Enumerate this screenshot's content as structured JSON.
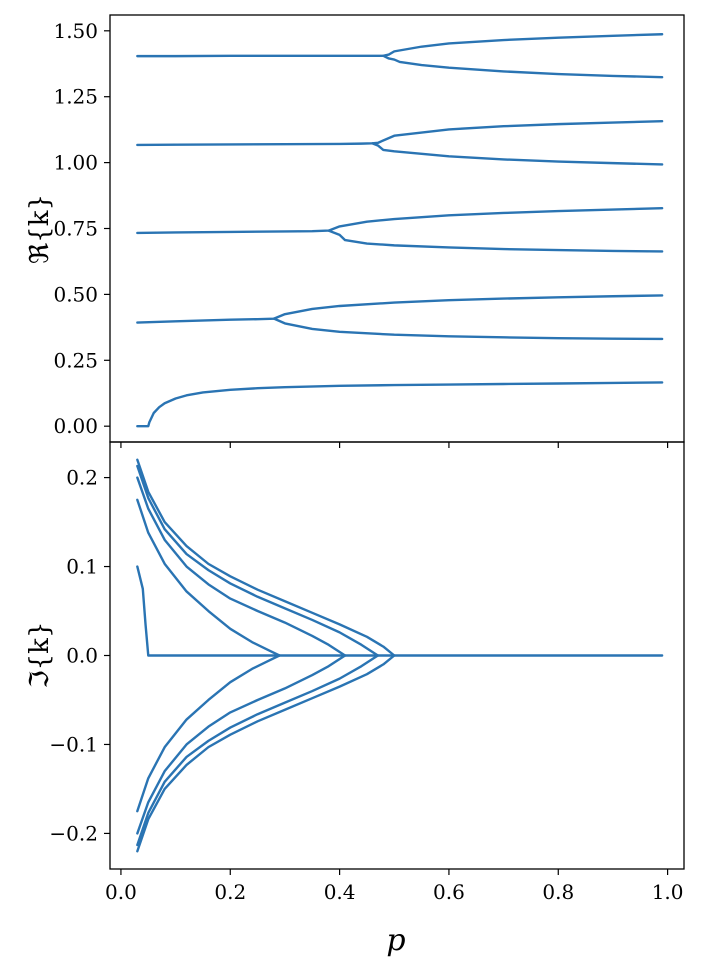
{
  "figure": {
    "line_color": "#2a74b3",
    "xlabel": "p"
  },
  "chart_data": [
    {
      "type": "line",
      "panel": "top",
      "title": "",
      "xlabel": "",
      "ylabel": "ℜ{k}",
      "xlim": [
        -0.02,
        1.03
      ],
      "ylim": [
        -0.06,
        1.56
      ],
      "xticks": [
        0.0,
        0.2,
        0.4,
        0.6,
        0.8,
        1.0
      ],
      "xtick_labels": [],
      "yticks": [
        0.0,
        0.25,
        0.5,
        0.75,
        1.0,
        1.25,
        1.5
      ],
      "ytick_labels": [
        "0.00",
        "0.25",
        "0.50",
        "0.75",
        "1.00",
        "1.25",
        "1.50"
      ],
      "grid": false,
      "series": [
        {
          "x": [
            0.03,
            0.05,
            0.052,
            0.06,
            0.07,
            0.08,
            0.1,
            0.12,
            0.15,
            0.2,
            0.25,
            0.3,
            0.4,
            0.5,
            0.6,
            0.7,
            0.8,
            0.9,
            0.99
          ],
          "y": [
            0.0,
            0.0,
            0.015,
            0.05,
            0.072,
            0.087,
            0.105,
            0.117,
            0.128,
            0.138,
            0.144,
            0.148,
            0.153,
            0.156,
            0.158,
            0.16,
            0.162,
            0.164,
            0.166
          ]
        },
        {
          "x": [
            0.03,
            0.1,
            0.2,
            0.25,
            0.28,
            0.3,
            0.35,
            0.4,
            0.5,
            0.6,
            0.7,
            0.8,
            0.9,
            0.99
          ],
          "y": [
            0.393,
            0.398,
            0.404,
            0.406,
            0.408,
            0.425,
            0.445,
            0.456,
            0.469,
            0.478,
            0.484,
            0.489,
            0.493,
            0.496
          ]
        },
        {
          "x": [
            0.28,
            0.3,
            0.35,
            0.4,
            0.5,
            0.6,
            0.7,
            0.8,
            0.9,
            0.99
          ],
          "y": [
            0.408,
            0.39,
            0.369,
            0.358,
            0.347,
            0.341,
            0.337,
            0.334,
            0.332,
            0.331
          ]
        },
        {
          "x": [
            0.03,
            0.1,
            0.2,
            0.3,
            0.35,
            0.38,
            0.4,
            0.45,
            0.5,
            0.6,
            0.7,
            0.8,
            0.9,
            0.99
          ],
          "y": [
            0.733,
            0.735,
            0.737,
            0.739,
            0.74,
            0.742,
            0.758,
            0.776,
            0.786,
            0.8,
            0.809,
            0.816,
            0.822,
            0.827
          ]
        },
        {
          "x": [
            0.38,
            0.4,
            0.41,
            0.45,
            0.5,
            0.6,
            0.7,
            0.8,
            0.9,
            0.99
          ],
          "y": [
            0.742,
            0.726,
            0.706,
            0.693,
            0.686,
            0.678,
            0.672,
            0.668,
            0.665,
            0.663
          ]
        },
        {
          "x": [
            0.03,
            0.1,
            0.2,
            0.3,
            0.4,
            0.44,
            0.46,
            0.47,
            0.5,
            0.6,
            0.7,
            0.8,
            0.9,
            0.99
          ],
          "y": [
            1.067,
            1.068,
            1.069,
            1.07,
            1.071,
            1.072,
            1.073,
            1.075,
            1.102,
            1.126,
            1.138,
            1.146,
            1.152,
            1.157
          ]
        },
        {
          "x": [
            0.46,
            0.47,
            0.48,
            0.5,
            0.6,
            0.7,
            0.8,
            0.9,
            0.99
          ],
          "y": [
            1.073,
            1.065,
            1.048,
            1.043,
            1.024,
            1.012,
            1.004,
            0.998,
            0.993
          ]
        },
        {
          "x": [
            0.03,
            0.1,
            0.2,
            0.3,
            0.4,
            0.45,
            0.48,
            0.49,
            0.5,
            0.55,
            0.6,
            0.7,
            0.8,
            0.9,
            0.99
          ],
          "y": [
            1.404,
            1.404,
            1.405,
            1.405,
            1.405,
            1.405,
            1.405,
            1.41,
            1.422,
            1.44,
            1.452,
            1.465,
            1.474,
            1.481,
            1.487
          ]
        },
        {
          "x": [
            0.48,
            0.49,
            0.5,
            0.51,
            0.55,
            0.6,
            0.7,
            0.8,
            0.9,
            0.99
          ],
          "y": [
            1.405,
            1.395,
            1.391,
            1.382,
            1.37,
            1.36,
            1.346,
            1.336,
            1.329,
            1.324
          ]
        }
      ]
    },
    {
      "type": "line",
      "panel": "bottom",
      "title": "",
      "xlabel": "p",
      "ylabel": "ℑ{k}",
      "xlim": [
        -0.02,
        1.03
      ],
      "ylim": [
        -0.24,
        0.24
      ],
      "xticks": [
        0.0,
        0.2,
        0.4,
        0.6,
        0.8,
        1.0
      ],
      "xtick_labels": [
        "0.0",
        "0.2",
        "0.4",
        "0.6",
        "0.8",
        "1.0"
      ],
      "yticks": [
        -0.2,
        -0.1,
        0.0,
        0.1,
        0.2
      ],
      "ytick_labels": [
        "−0.2",
        "−0.1",
        "0.0",
        "0.1",
        "0.2"
      ],
      "grid": false,
      "series": [
        {
          "x": [
            0.03,
            0.04,
            0.045,
            0.05,
            0.06,
            0.1,
            0.2,
            0.3,
            0.4,
            0.5,
            0.6,
            0.7,
            0.8,
            0.9,
            0.99
          ],
          "y": [
            0.1,
            0.075,
            0.035,
            0.0,
            0.0,
            0.0,
            0.0,
            0.0,
            0.0,
            0.0,
            0.0,
            0.0,
            0.0,
            0.0,
            0.0
          ]
        },
        {
          "x": [
            0.03,
            0.05,
            0.08,
            0.12,
            0.16,
            0.2,
            0.24,
            0.27,
            0.29
          ],
          "y": [
            0.175,
            0.138,
            0.103,
            0.072,
            0.05,
            0.03,
            0.015,
            0.006,
            0.0
          ]
        },
        {
          "x": [
            0.03,
            0.05,
            0.08,
            0.12,
            0.16,
            0.2,
            0.24,
            0.27,
            0.29
          ],
          "y": [
            -0.175,
            -0.138,
            -0.103,
            -0.072,
            -0.05,
            -0.03,
            -0.015,
            -0.006,
            0.0
          ]
        },
        {
          "x": [
            0.03,
            0.05,
            0.08,
            0.12,
            0.16,
            0.2,
            0.25,
            0.3,
            0.35,
            0.38,
            0.41
          ],
          "y": [
            0.2,
            0.165,
            0.13,
            0.1,
            0.08,
            0.064,
            0.05,
            0.037,
            0.022,
            0.012,
            0.0
          ]
        },
        {
          "x": [
            0.03,
            0.05,
            0.08,
            0.12,
            0.16,
            0.2,
            0.25,
            0.3,
            0.35,
            0.38,
            0.41
          ],
          "y": [
            -0.2,
            -0.165,
            -0.13,
            -0.1,
            -0.08,
            -0.064,
            -0.05,
            -0.037,
            -0.022,
            -0.012,
            0.0
          ]
        },
        {
          "x": [
            0.03,
            0.05,
            0.08,
            0.12,
            0.16,
            0.2,
            0.25,
            0.3,
            0.35,
            0.4,
            0.44,
            0.47
          ],
          "y": [
            0.213,
            0.177,
            0.142,
            0.114,
            0.096,
            0.081,
            0.066,
            0.053,
            0.04,
            0.026,
            0.012,
            0.0
          ]
        },
        {
          "x": [
            0.03,
            0.05,
            0.08,
            0.12,
            0.16,
            0.2,
            0.25,
            0.3,
            0.35,
            0.4,
            0.44,
            0.47
          ],
          "y": [
            -0.213,
            -0.177,
            -0.142,
            -0.114,
            -0.096,
            -0.081,
            -0.066,
            -0.053,
            -0.04,
            -0.026,
            -0.012,
            0.0
          ]
        },
        {
          "x": [
            0.03,
            0.05,
            0.08,
            0.12,
            0.16,
            0.2,
            0.25,
            0.3,
            0.35,
            0.4,
            0.45,
            0.48,
            0.5
          ],
          "y": [
            0.22,
            0.184,
            0.15,
            0.123,
            0.103,
            0.089,
            0.074,
            0.061,
            0.048,
            0.035,
            0.021,
            0.01,
            0.0
          ]
        },
        {
          "x": [
            0.03,
            0.05,
            0.08,
            0.12,
            0.16,
            0.2,
            0.25,
            0.3,
            0.35,
            0.4,
            0.45,
            0.48,
            0.5
          ],
          "y": [
            -0.22,
            -0.184,
            -0.15,
            -0.123,
            -0.103,
            -0.089,
            -0.074,
            -0.061,
            -0.048,
            -0.035,
            -0.021,
            -0.01,
            0.0
          ]
        }
      ]
    }
  ]
}
